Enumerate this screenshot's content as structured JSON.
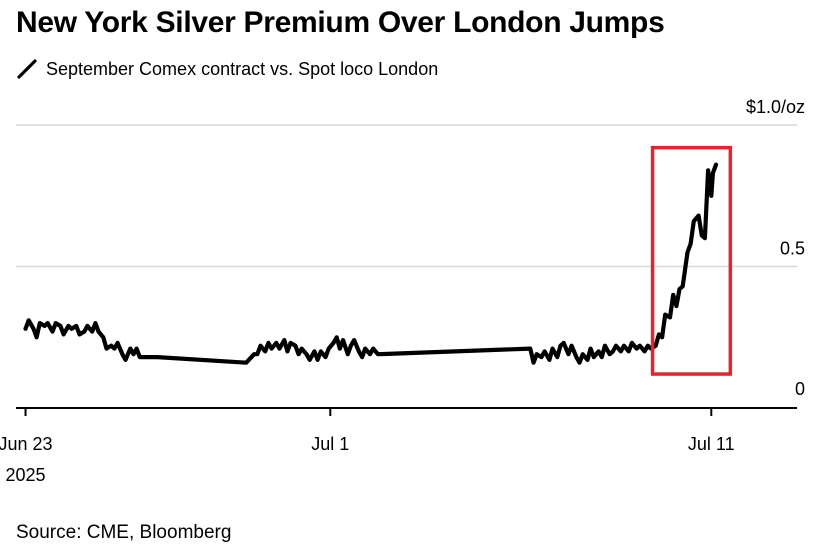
{
  "title": "New York Silver Premium Over London Jumps",
  "legend": {
    "series_label": "September Comex contract vs. Spot loco London",
    "series_color": "#000000",
    "icon": "line-swatch-icon"
  },
  "source": "Source: CME, Bloomberg",
  "colors": {
    "line": "#000000",
    "highlight_box": "#e0262d",
    "grid": "#d9d9d9",
    "axis": "#000000"
  },
  "chart_data": {
    "type": "line",
    "title": "New York Silver Premium Over London Jumps",
    "subtitle": "",
    "xlabel": "",
    "ylabel": "",
    "y_unit_label": "$1.0/oz",
    "ylim": [
      0,
      1.0
    ],
    "y_ticks": [
      {
        "value": 0,
        "label": "0"
      },
      {
        "value": 0.5,
        "label": "0.5"
      },
      {
        "value": 1.0,
        "label": "$1.0/oz"
      }
    ],
    "x_ticks": [
      {
        "date": "2025-06-23",
        "label": "Jun 23",
        "sublabel": "2025"
      },
      {
        "date": "2025-07-01",
        "label": "Jul 1",
        "sublabel": ""
      },
      {
        "date": "2025-07-11",
        "label": "Jul 11",
        "sublabel": ""
      }
    ],
    "xlim": [
      "2025-06-22T18:00",
      "2025-07-13T06:00"
    ],
    "grid": true,
    "legend_position": "top-left",
    "annotations": [
      {
        "type": "highlight-box",
        "x_range": [
          "2025-07-09T11:00",
          "2025-07-11T12:00"
        ],
        "y_range": [
          0.12,
          0.92
        ]
      }
    ],
    "series": [
      {
        "name": "September Comex contract vs. Spot loco London",
        "points": [
          [
            "2025-06-23T00:00",
            0.28
          ],
          [
            "2025-06-23T02:00",
            0.31
          ],
          [
            "2025-06-23T05:00",
            0.28
          ],
          [
            "2025-06-23T07:00",
            0.25
          ],
          [
            "2025-06-23T09:00",
            0.3
          ],
          [
            "2025-06-23T12:00",
            0.29
          ],
          [
            "2025-06-23T14:00",
            0.3
          ],
          [
            "2025-06-23T17:00",
            0.27
          ],
          [
            "2025-06-23T19:00",
            0.3
          ],
          [
            "2025-06-23T22:00",
            0.29
          ],
          [
            "2025-06-24T00:00",
            0.26
          ],
          [
            "2025-06-24T03:00",
            0.29
          ],
          [
            "2025-06-24T05:00",
            0.28
          ],
          [
            "2025-06-24T08:00",
            0.29
          ],
          [
            "2025-06-24T10:00",
            0.26
          ],
          [
            "2025-06-24T13:00",
            0.27
          ],
          [
            "2025-06-24T15:00",
            0.29
          ],
          [
            "2025-06-24T18:00",
            0.27
          ],
          [
            "2025-06-24T20:00",
            0.3
          ],
          [
            "2025-06-24T22:00",
            0.27
          ],
          [
            "2025-06-25T01:00",
            0.25
          ],
          [
            "2025-06-25T03:00",
            0.21
          ],
          [
            "2025-06-25T06:00",
            0.22
          ],
          [
            "2025-06-25T08:00",
            0.21
          ],
          [
            "2025-06-25T10:00",
            0.23
          ],
          [
            "2025-06-25T13:00",
            0.19
          ],
          [
            "2025-06-25T15:00",
            0.17
          ],
          [
            "2025-06-25T18:00",
            0.21
          ],
          [
            "2025-06-25T20:00",
            0.19
          ],
          [
            "2025-06-25T22:00",
            0.21
          ],
          [
            "2025-06-26T00:00",
            0.18
          ],
          [
            "2025-06-26T11:00",
            0.18
          ],
          [
            "2025-06-28T19:00",
            0.16
          ],
          [
            "2025-06-29T00:00",
            0.19
          ],
          [
            "2025-06-29T02:00",
            0.19
          ],
          [
            "2025-06-29T04:00",
            0.22
          ],
          [
            "2025-06-29T07:00",
            0.2
          ],
          [
            "2025-06-29T09:00",
            0.23
          ],
          [
            "2025-06-29T11:00",
            0.21
          ],
          [
            "2025-06-29T14:00",
            0.23
          ],
          [
            "2025-06-29T16:00",
            0.21
          ],
          [
            "2025-06-29T19:00",
            0.24
          ],
          [
            "2025-06-29T21:00",
            0.2
          ],
          [
            "2025-06-29T23:00",
            0.23
          ],
          [
            "2025-06-30T02:00",
            0.22
          ],
          [
            "2025-06-30T04:00",
            0.19
          ],
          [
            "2025-06-30T06:00",
            0.21
          ],
          [
            "2025-06-30T09:00",
            0.19
          ],
          [
            "2025-06-30T11:00",
            0.17
          ],
          [
            "2025-06-30T14:00",
            0.2
          ],
          [
            "2025-06-30T16:00",
            0.17
          ],
          [
            "2025-06-30T18:00",
            0.2
          ],
          [
            "2025-06-30T21:00",
            0.18
          ],
          [
            "2025-06-30T23:00",
            0.21
          ],
          [
            "2025-07-01T02:00",
            0.23
          ],
          [
            "2025-07-01T04:00",
            0.25
          ],
          [
            "2025-07-01T06:00",
            0.21
          ],
          [
            "2025-07-01T08:00",
            0.24
          ],
          [
            "2025-07-01T11:00",
            0.19
          ],
          [
            "2025-07-01T13:00",
            0.22
          ],
          [
            "2025-07-01T15:00",
            0.24
          ],
          [
            "2025-07-01T18:00",
            0.2
          ],
          [
            "2025-07-01T20:00",
            0.18
          ],
          [
            "2025-07-01T22:00",
            0.21
          ],
          [
            "2025-07-02T01:00",
            0.19
          ],
          [
            "2025-07-02T03:00",
            0.21
          ],
          [
            "2025-07-02T06:00",
            0.19
          ],
          [
            "2025-07-06T06:00",
            0.21
          ],
          [
            "2025-07-06T08:00",
            0.16
          ],
          [
            "2025-07-06T10:00",
            0.19
          ],
          [
            "2025-07-06T13:00",
            0.18
          ],
          [
            "2025-07-06T15:00",
            0.2
          ],
          [
            "2025-07-06T18:00",
            0.17
          ],
          [
            "2025-07-06T20:00",
            0.21
          ],
          [
            "2025-07-06T23:00",
            0.18
          ],
          [
            "2025-07-07T01:00",
            0.22
          ],
          [
            "2025-07-07T03:00",
            0.23
          ],
          [
            "2025-07-07T06:00",
            0.19
          ],
          [
            "2025-07-07T08:00",
            0.22
          ],
          [
            "2025-07-07T11:00",
            0.18
          ],
          [
            "2025-07-07T13:00",
            0.16
          ],
          [
            "2025-07-07T15:00",
            0.19
          ],
          [
            "2025-07-07T18:00",
            0.17
          ],
          [
            "2025-07-07T20:00",
            0.21
          ],
          [
            "2025-07-07T22:00",
            0.18
          ],
          [
            "2025-07-08T01:00",
            0.2
          ],
          [
            "2025-07-08T03:00",
            0.18
          ],
          [
            "2025-07-08T05:00",
            0.22
          ],
          [
            "2025-07-08T08:00",
            0.19
          ],
          [
            "2025-07-08T10:00",
            0.2
          ],
          [
            "2025-07-08T12:00",
            0.22
          ],
          [
            "2025-07-08T15:00",
            0.2
          ],
          [
            "2025-07-08T17:00",
            0.22
          ],
          [
            "2025-07-08T20:00",
            0.2
          ],
          [
            "2025-07-08T22:00",
            0.23
          ],
          [
            "2025-07-09T01:00",
            0.21
          ],
          [
            "2025-07-09T03:00",
            0.22
          ],
          [
            "2025-07-09T06:00",
            0.2
          ],
          [
            "2025-07-09T08:00",
            0.22
          ],
          [
            "2025-07-09T10:00",
            0.21
          ],
          [
            "2025-07-09T13:00",
            0.22
          ],
          [
            "2025-07-09T15:00",
            0.26
          ],
          [
            "2025-07-09T17:00",
            0.25
          ],
          [
            "2025-07-09T19:00",
            0.33
          ],
          [
            "2025-07-09T22:00",
            0.32
          ],
          [
            "2025-07-10T00:00",
            0.4
          ],
          [
            "2025-07-10T02:00",
            0.36
          ],
          [
            "2025-07-10T04:00",
            0.42
          ],
          [
            "2025-07-10T06:00",
            0.43
          ],
          [
            "2025-07-10T09:00",
            0.55
          ],
          [
            "2025-07-10T11:00",
            0.58
          ],
          [
            "2025-07-10T13:00",
            0.66
          ],
          [
            "2025-07-10T16:00",
            0.68
          ],
          [
            "2025-07-10T18:00",
            0.61
          ],
          [
            "2025-07-10T20:00",
            0.6
          ],
          [
            "2025-07-10T22:00",
            0.84
          ],
          [
            "2025-07-11T00:00",
            0.75
          ],
          [
            "2025-07-11T01:00",
            0.83
          ],
          [
            "2025-07-11T03:00",
            0.86
          ]
        ]
      }
    ]
  }
}
